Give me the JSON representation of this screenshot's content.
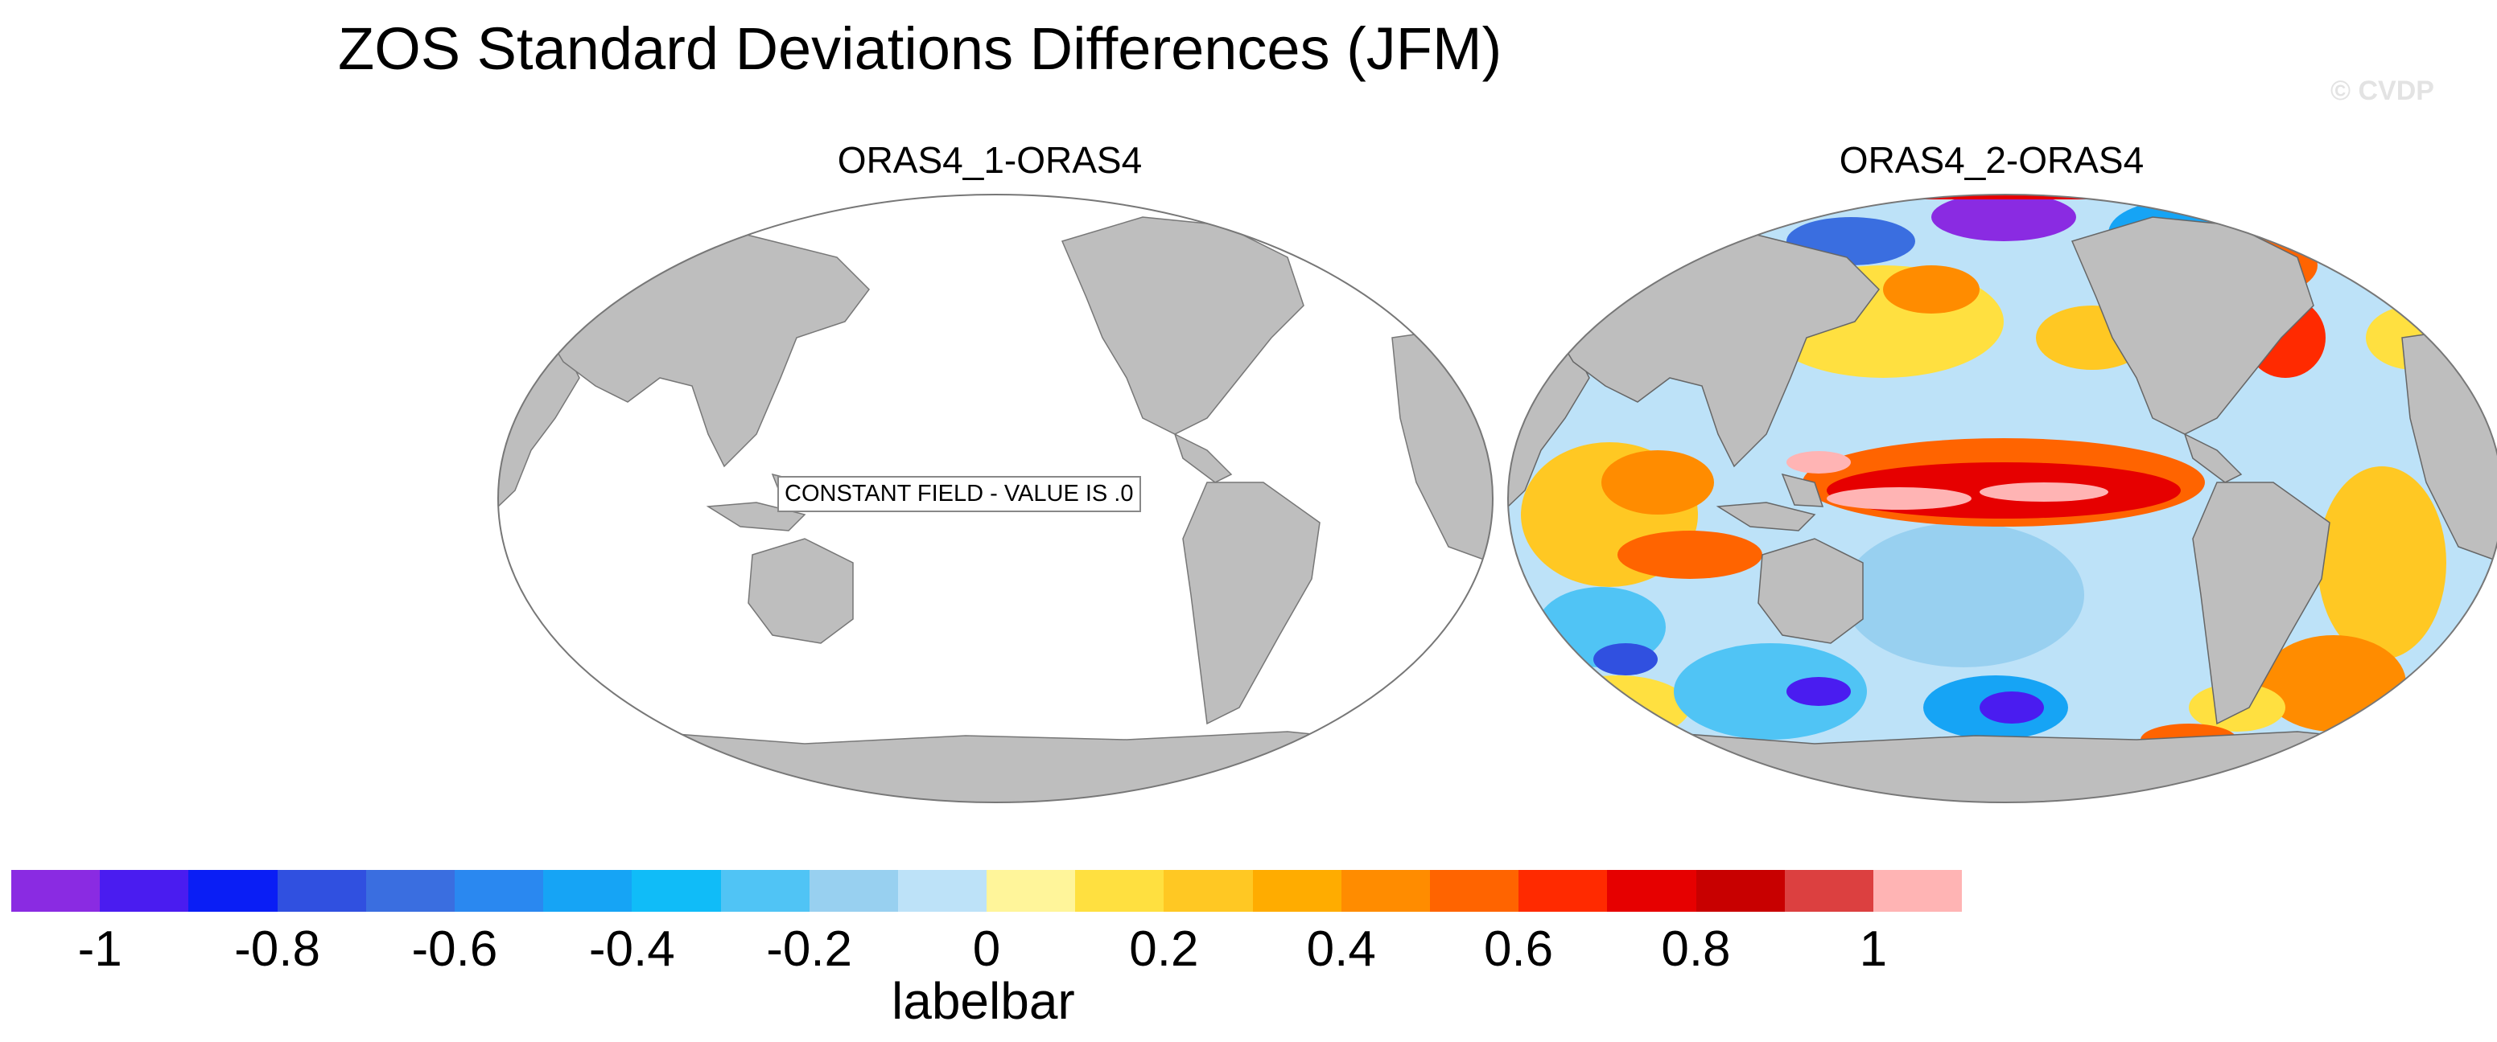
{
  "figure": {
    "title": "ZOS Standard Deviations Differences (JFM)",
    "watermark": "© CVDP"
  },
  "panels": [
    {
      "title": "ORAS4_1-ORAS4",
      "annotation": "CONSTANT FIELD - VALUE IS .0"
    },
    {
      "title": "ORAS4_2-ORAS4"
    }
  ],
  "colors": {
    "land": "#bebebe",
    "ocean_blank": "#ffffff",
    "outline": "#777777"
  },
  "colorbar": {
    "title": "labelbar",
    "tick_labels": [
      "-1",
      "-0.8",
      "-0.6",
      "-0.4",
      "-0.2",
      "0",
      "0.2",
      "0.4",
      "0.6",
      "0.8",
      "1"
    ],
    "tick_values": [
      -1,
      -0.8,
      -0.6,
      -0.4,
      -0.2,
      0,
      0.2,
      0.4,
      0.6,
      0.8,
      1
    ],
    "min": -1.1,
    "max": 1.1,
    "colors": [
      "#8a2be2",
      "#4a1cf0",
      "#0a1ef5",
      "#3050e0",
      "#3a6ee0",
      "#2a88f0",
      "#16a4f5",
      "#10bcf8",
      "#50c4f5",
      "#98d0f0",
      "#bde2f8",
      "#fff59a",
      "#ffe040",
      "#ffc823",
      "#ffac00",
      "#ff8c00",
      "#ff6400",
      "#ff2a00",
      "#e60000",
      "#c80000",
      "#dc4040",
      "#ffb4b4"
    ]
  }
}
